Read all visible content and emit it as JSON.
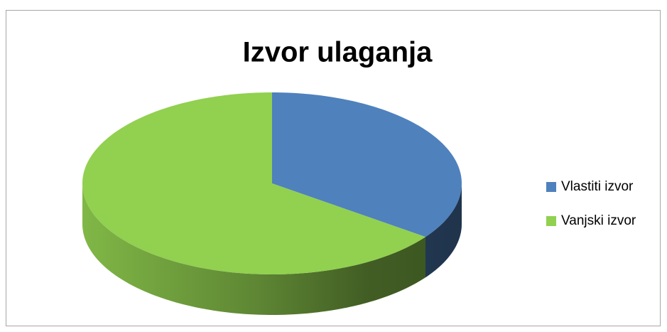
{
  "chart_data": {
    "type": "pie3d",
    "title": "Izvor ulaganja",
    "categories": [
      "Vlastiti izvor",
      "Vanjski izvor"
    ],
    "values": [
      35,
      65
    ],
    "colors": [
      "#4f81bd",
      "#92d050"
    ],
    "legend": "right"
  }
}
